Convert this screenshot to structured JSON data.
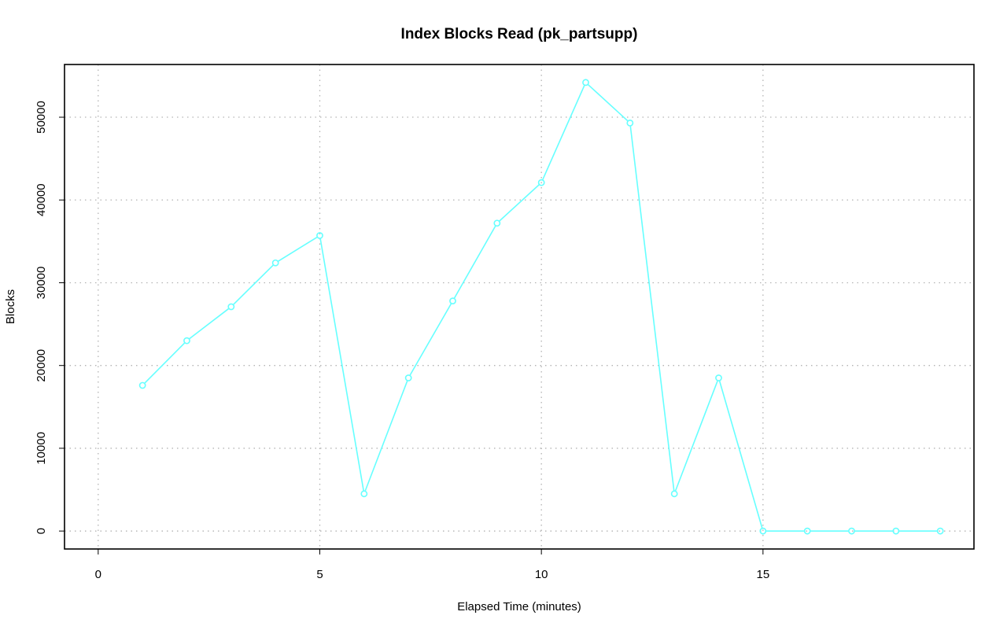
{
  "chart_data": {
    "type": "line",
    "title": "Index Blocks Read (pk_partsupp)",
    "xlabel": "Elapsed Time (minutes)",
    "ylabel": "Blocks",
    "xlim": [
      -0.76,
      19.76
    ],
    "ylim": [
      -2170,
      56370
    ],
    "x_ticks": [
      0,
      5,
      10,
      15
    ],
    "y_ticks": [
      0,
      10000,
      20000,
      30000,
      40000,
      50000
    ],
    "grid": true,
    "series": [
      {
        "color": "#66ffff",
        "marker": "open-circle",
        "x": [
          1,
          2,
          3,
          4,
          5,
          6,
          7,
          8,
          9,
          10,
          11,
          12,
          13,
          14,
          15,
          16,
          17,
          18,
          19
        ],
        "values": [
          17600,
          23000,
          27100,
          32400,
          35700,
          4500,
          18500,
          27800,
          37200,
          42100,
          54200,
          49300,
          4500,
          18500,
          0,
          0,
          0,
          0,
          0
        ]
      }
    ]
  }
}
